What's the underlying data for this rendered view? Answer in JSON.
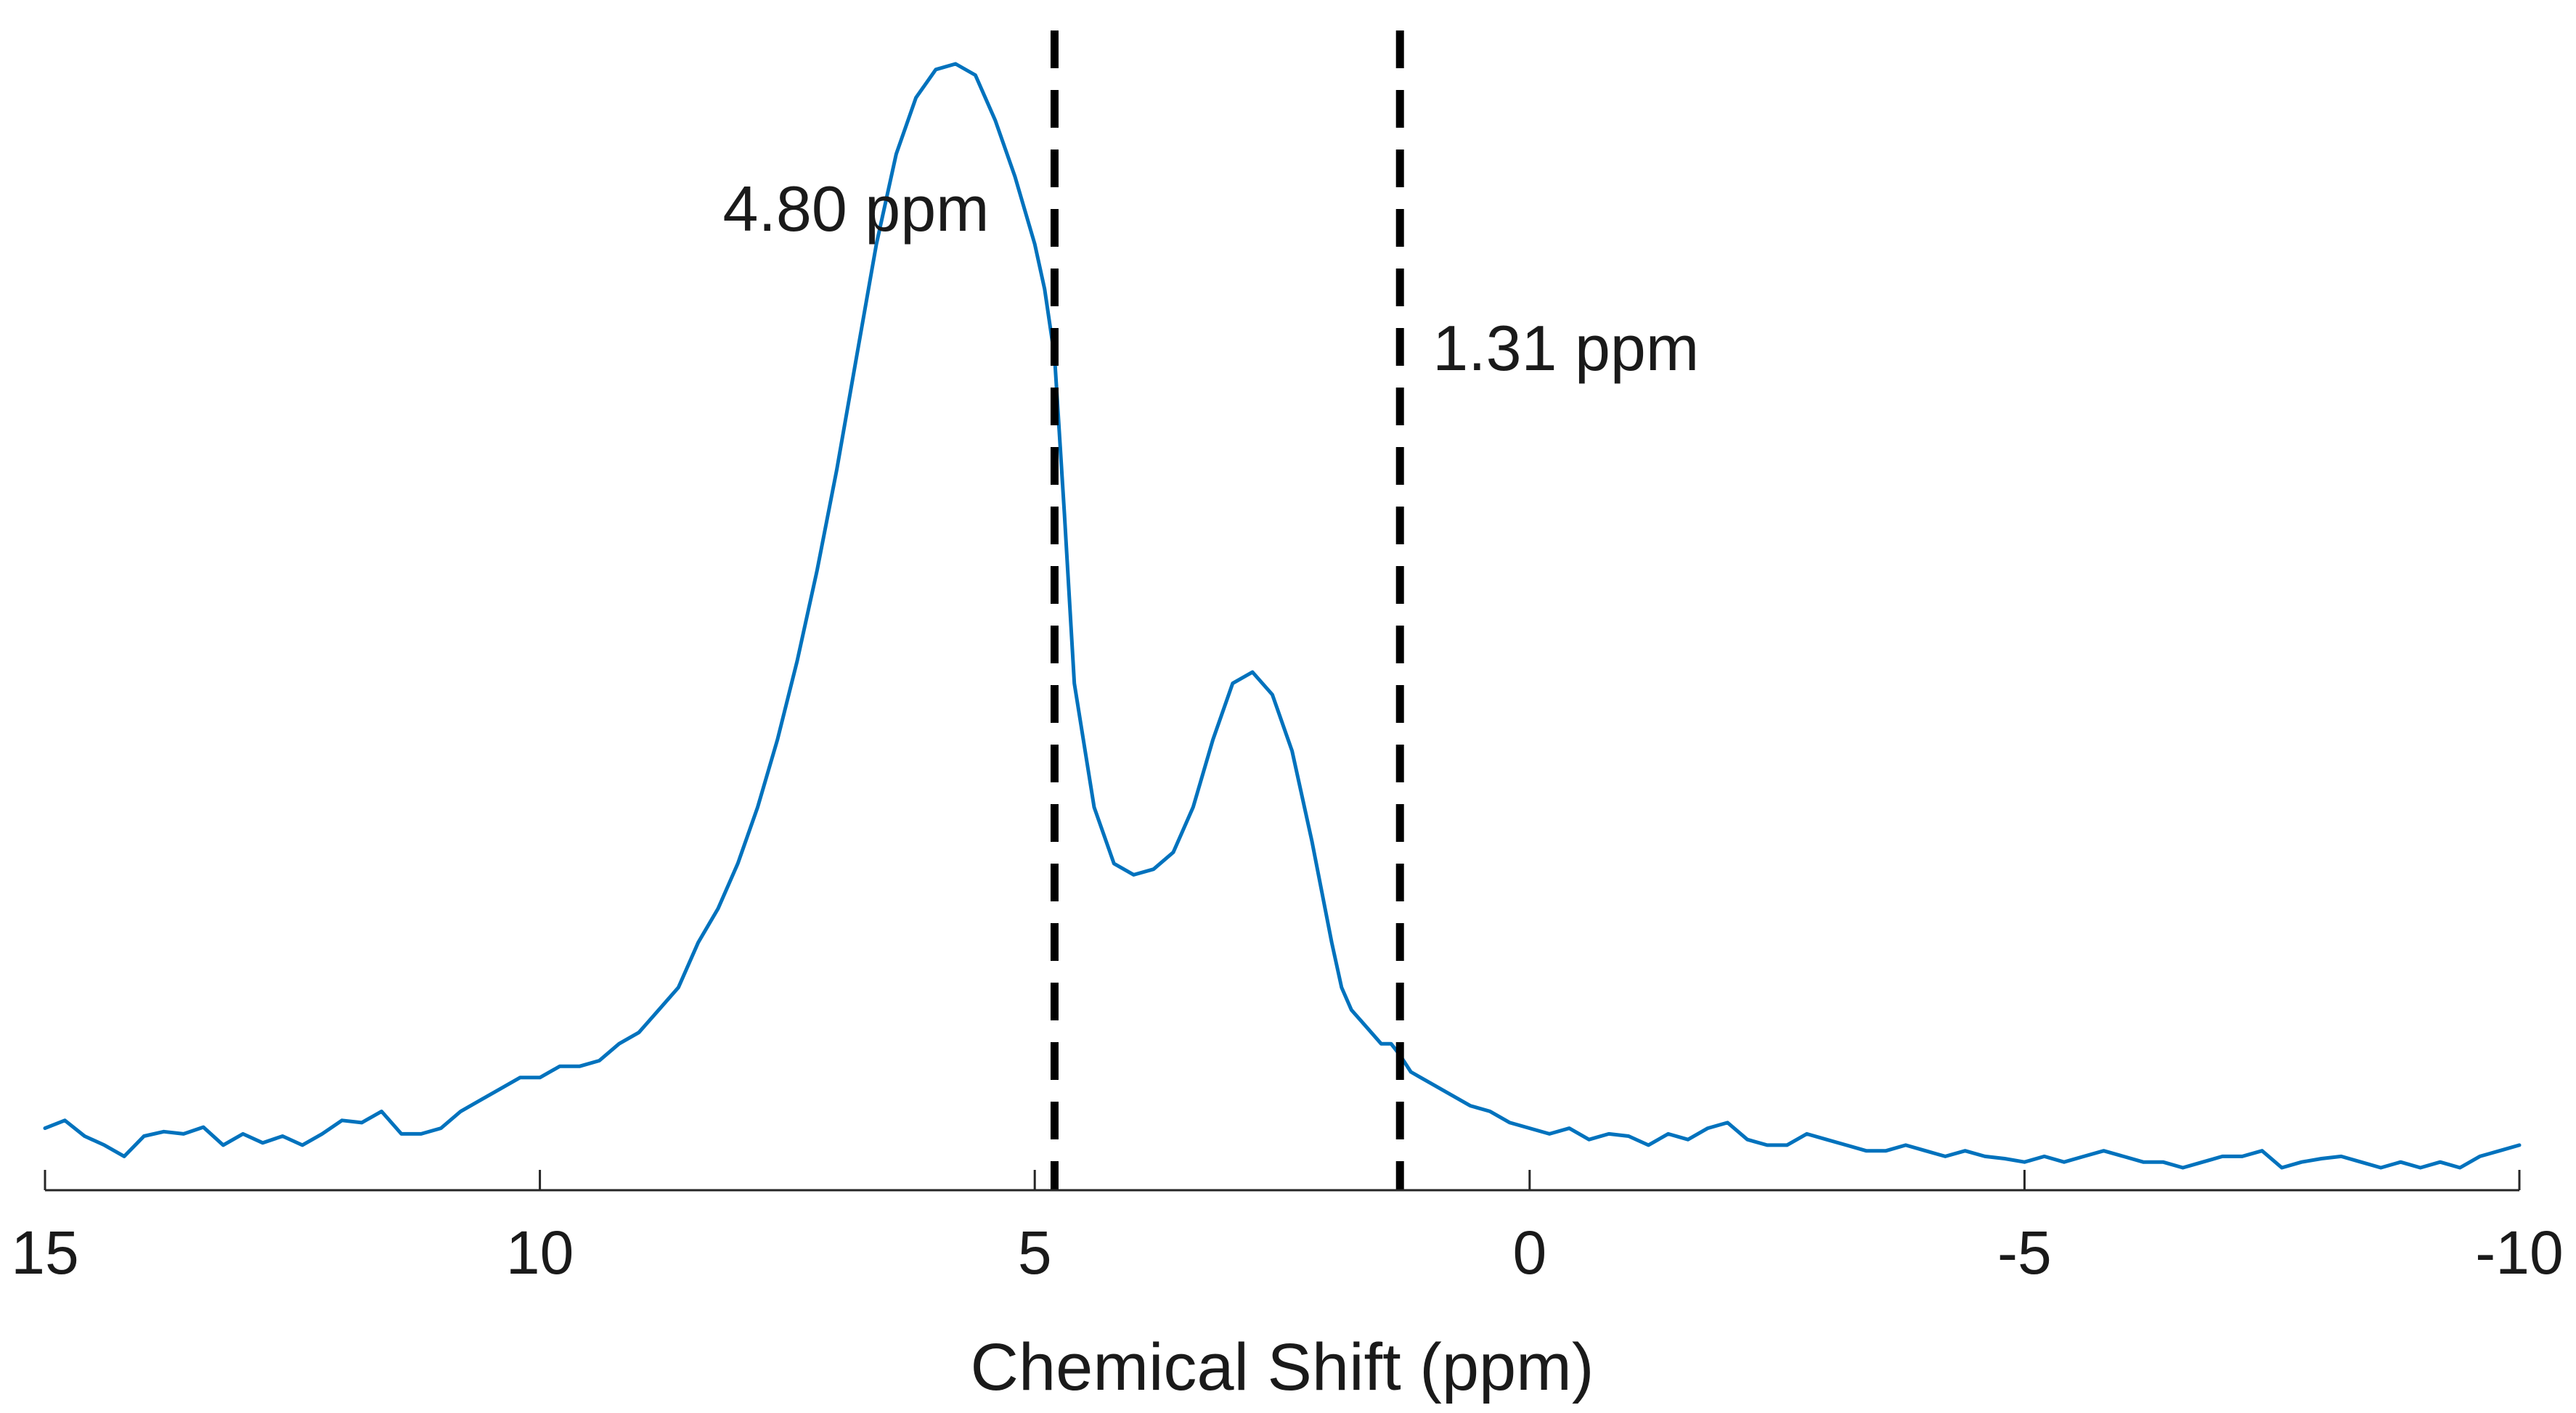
{
  "chart_data": {
    "type": "line",
    "title": "",
    "xlabel": "Chemical Shift (ppm)",
    "ylabel": "",
    "xlim": [
      15,
      -10
    ],
    "x_reversed": true,
    "ylim": [
      0,
      1
    ],
    "y_axis_visible": false,
    "grid": false,
    "legend": "none",
    "x_ticks": [
      15,
      10,
      5,
      0,
      -5,
      -10
    ],
    "x_tick_labels": [
      "15",
      "10",
      "5",
      "0",
      "-5",
      "-10"
    ],
    "series": [
      {
        "color": "#0072BD",
        "x": [
          15,
          14.8,
          14.6,
          14.4,
          14.2,
          14.0,
          13.8,
          13.6,
          13.4,
          13.2,
          13.0,
          12.8,
          12.6,
          12.4,
          12.2,
          12.0,
          11.8,
          11.6,
          11.4,
          11.2,
          11.0,
          10.8,
          10.6,
          10.4,
          10.2,
          10.0,
          9.8,
          9.6,
          9.4,
          9.2,
          9.0,
          8.8,
          8.6,
          8.4,
          8.2,
          8.0,
          7.8,
          7.6,
          7.4,
          7.2,
          7.0,
          6.8,
          6.6,
          6.4,
          6.2,
          6.0,
          5.8,
          5.6,
          5.4,
          5.2,
          5.0,
          4.9,
          4.8,
          4.7,
          4.6,
          4.4,
          4.2,
          4.0,
          3.8,
          3.6,
          3.4,
          3.2,
          3.0,
          2.8,
          2.6,
          2.4,
          2.2,
          2.0,
          1.9,
          1.8,
          1.7,
          1.6,
          1.5,
          1.4,
          1.31,
          1.2,
          1.1,
          1.0,
          0.9,
          0.8,
          0.6,
          0.4,
          0.2,
          0.0,
          -0.2,
          -0.4,
          -0.6,
          -0.8,
          -1.0,
          -1.2,
          -1.4,
          -1.6,
          -1.8,
          -2.0,
          -2.2,
          -2.4,
          -2.6,
          -2.8,
          -3.0,
          -3.2,
          -3.4,
          -3.6,
          -3.8,
          -4.0,
          -4.2,
          -4.4,
          -4.6,
          -4.8,
          -5.0,
          -5.2,
          -5.4,
          -5.6,
          -5.8,
          -6.0,
          -6.2,
          -6.4,
          -6.6,
          -6.8,
          -7.0,
          -7.2,
          -7.4,
          -7.6,
          -7.8,
          -8.0,
          -8.2,
          -8.4,
          -8.6,
          -8.8,
          -9.0,
          -9.2,
          -9.4,
          -9.6,
          -9.8,
          -10.0
        ],
        "y": [
          0.055,
          0.062,
          0.048,
          0.04,
          0.03,
          0.048,
          0.052,
          0.05,
          0.056,
          0.04,
          0.05,
          0.042,
          0.048,
          0.04,
          0.05,
          0.062,
          0.06,
          0.07,
          0.05,
          0.05,
          0.055,
          0.07,
          0.08,
          0.09,
          0.1,
          0.1,
          0.11,
          0.11,
          0.115,
          0.13,
          0.14,
          0.16,
          0.18,
          0.22,
          0.25,
          0.29,
          0.34,
          0.4,
          0.47,
          0.55,
          0.64,
          0.74,
          0.84,
          0.92,
          0.97,
          0.995,
          1.0,
          0.99,
          0.95,
          0.9,
          0.84,
          0.8,
          0.74,
          0.6,
          0.45,
          0.34,
          0.29,
          0.28,
          0.285,
          0.3,
          0.34,
          0.4,
          0.45,
          0.46,
          0.44,
          0.39,
          0.31,
          0.22,
          0.18,
          0.16,
          0.15,
          0.14,
          0.13,
          0.13,
          0.12,
          0.105,
          0.1,
          0.095,
          0.09,
          0.085,
          0.075,
          0.07,
          0.06,
          0.055,
          0.05,
          0.055,
          0.045,
          0.05,
          0.048,
          0.04,
          0.05,
          0.045,
          0.055,
          0.06,
          0.045,
          0.04,
          0.04,
          0.05,
          0.045,
          0.04,
          0.035,
          0.035,
          0.04,
          0.035,
          0.03,
          0.035,
          0.03,
          0.028,
          0.025,
          0.03,
          0.025,
          0.03,
          0.035,
          0.03,
          0.025,
          0.025,
          0.02,
          0.025,
          0.03,
          0.03,
          0.035,
          0.02,
          0.025,
          0.028,
          0.03,
          0.025,
          0.02,
          0.025,
          0.02,
          0.025,
          0.02,
          0.03,
          0.035,
          0.04
        ]
      }
    ],
    "annotations": [
      {
        "x": 4.8,
        "label": "4.80 ppm",
        "side": "left",
        "style": "dashed"
      },
      {
        "x": 1.31,
        "label": "1.31 ppm",
        "side": "right",
        "style": "dashed"
      }
    ]
  }
}
